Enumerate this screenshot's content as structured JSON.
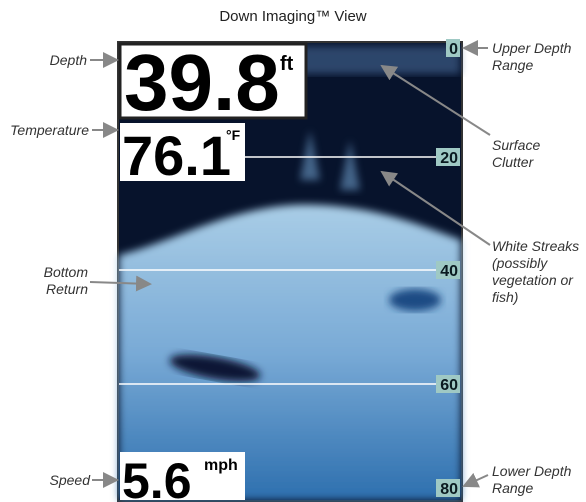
{
  "title": "Down Imaging™ View",
  "screen": {
    "depth": {
      "value": "39.8",
      "unit": "ft"
    },
    "temperature": {
      "value": "76.1",
      "unit": "°F"
    },
    "speed": {
      "value": "5.6",
      "unit": "mph"
    },
    "depth_scale": [
      "0",
      "20",
      "40",
      "60",
      "80"
    ]
  },
  "callouts": {
    "depth": "Depth",
    "temperature": "Temperature",
    "bottom_return": "Bottom Return",
    "speed": "Speed",
    "upper_depth_range": "Upper Depth Range",
    "surface_clutter": "Surface Clutter",
    "white_streaks": "White Streaks (possibly vegetation or fish)",
    "lower_depth_range": "Lower Depth Range"
  }
}
